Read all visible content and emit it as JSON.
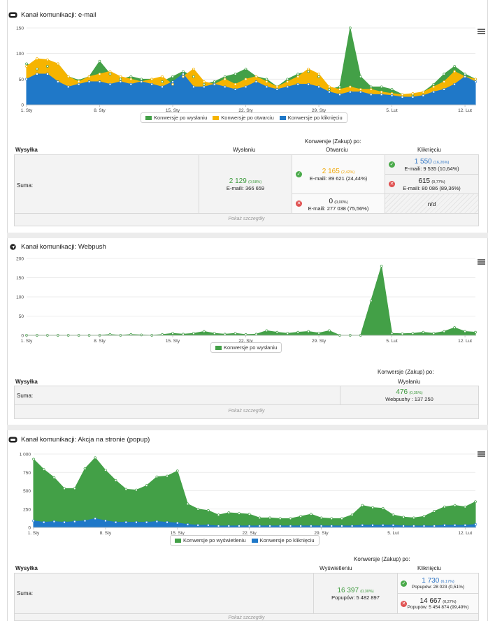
{
  "sections": [
    {
      "title": "Kanał komunikacji: e-mail",
      "icon": "email-icon",
      "chart_data": {
        "type": "area",
        "x": [
          "1. Sty",
          "2. Sty",
          "3. Sty",
          "4. Sty",
          "5. Sty",
          "6. Sty",
          "7. Sty",
          "8. Sty",
          "9. Sty",
          "10. Sty",
          "11. Sty",
          "12. Sty",
          "13. Sty",
          "14. Sty",
          "15. Sty",
          "16. Sty",
          "17. Sty",
          "18. Sty",
          "19. Sty",
          "20. Sty",
          "21. Sty",
          "22. Sty",
          "23. Sty",
          "24. Sty",
          "25. Sty",
          "26. Sty",
          "27. Sty",
          "28. Sty",
          "29. Sty",
          "30. Sty",
          "31. Sty",
          "1. Lut",
          "2. Lut",
          "3. Lut",
          "4. Lut",
          "5. Lut",
          "6. Lut",
          "7. Lut",
          "8. Lut",
          "9. Lut",
          "10. Lut",
          "11. Lut",
          "12. Lut",
          "13. Lut"
        ],
        "tick_labels": [
          "1. Sty",
          "8. Sty",
          "15. Sty",
          "22. Sty",
          "29. Sty",
          "5. Lut",
          "12. Lut"
        ],
        "tick_index": [
          0,
          7,
          14,
          21,
          28,
          35,
          42
        ],
        "yticks": [
          0,
          50,
          100,
          150
        ],
        "ylim": [
          0,
          150
        ],
        "series": [
          {
            "name": "Konwersje po wysłaniu",
            "color": "#43a047",
            "values": [
              80,
              70,
              75,
              80,
              55,
              48,
              55,
              85,
              60,
              50,
              55,
              50,
              50,
              45,
              55,
              65,
              55,
              40,
              45,
              55,
              60,
              70,
              55,
              50,
              35,
              50,
              60,
              65,
              55,
              30,
              35,
              150,
              55,
              35,
              35,
              30,
              20,
              20,
              25,
              40,
              60,
              75,
              60,
              50
            ]
          },
          {
            "name": "Konwersje po otwarciu",
            "color": "#f6b400",
            "values": [
              75,
              90,
              88,
              80,
              55,
              45,
              55,
              60,
              65,
              55,
              50,
              45,
              50,
              55,
              40,
              55,
              70,
              45,
              40,
              50,
              40,
              50,
              55,
              45,
              35,
              45,
              55,
              70,
              60,
              35,
              30,
              35,
              30,
              30,
              25,
              22,
              20,
              22,
              25,
              35,
              45,
              65,
              55,
              50
            ]
          },
          {
            "name": "Konwersje po kliknięciu",
            "color": "#1f78c8",
            "values": [
              50,
              60,
              60,
              45,
              35,
              40,
              45,
              45,
              40,
              45,
              40,
              45,
              40,
              35,
              45,
              60,
              35,
              35,
              40,
              35,
              30,
              35,
              45,
              35,
              30,
              35,
              40,
              40,
              35,
              25,
              20,
              25,
              25,
              20,
              20,
              18,
              15,
              15,
              18,
              25,
              30,
              40,
              55,
              45
            ]
          }
        ]
      },
      "table": {
        "head_group": "Konwersje (Zakup) po:",
        "col_wysylka": "Wysyłka",
        "col_sent": "Wysłaniu",
        "col_open": "Otwarciu",
        "col_click": "Kliknięciu",
        "row_label": "Suma:",
        "sent_value": "2 129",
        "sent_pct": "(0,58%)",
        "sent_sub": "E-maili: 366 659",
        "open_ok_value": "2 165",
        "open_ok_pct": "(2,42%)",
        "open_ok_sub": "E-maili: 89 621 (24,44%)",
        "open_err_value": "0",
        "open_err_pct": "(0,00%)",
        "open_err_sub": "E-maili: 277 038 (75,56%)",
        "click_ok_value": "1 550",
        "click_ok_pct": "(16,26%)",
        "click_ok_sub": "E-maili: 9 535 (10,64%)",
        "click_err_value": "615",
        "click_err_pct": "(0,77%)",
        "click_err_sub": "E-maili: 80 086 (89,36%)",
        "click_na": "n/d",
        "details": "Pokaż szczegóły"
      }
    },
    {
      "title": "Kanał komunikacji: Webpush",
      "icon": "send-icon",
      "chart_data": {
        "type": "area",
        "tick_labels": [
          "1. Sty",
          "8. Sty",
          "15. Sty",
          "22. Sty",
          "29. Sty",
          "5. Lut",
          "12. Lut"
        ],
        "tick_index": [
          0,
          7,
          14,
          21,
          28,
          35,
          42
        ],
        "yticks": [
          0,
          50,
          100,
          150,
          200
        ],
        "ylim": [
          0,
          200
        ],
        "series": [
          {
            "name": "Konwersje po wysłaniu",
            "color": "#43a047",
            "values": [
              0,
              0,
              0,
              0,
              0,
              0,
              0,
              0,
              2,
              0,
              2,
              1,
              0,
              2,
              5,
              3,
              5,
              10,
              5,
              3,
              5,
              2,
              3,
              12,
              8,
              5,
              8,
              10,
              6,
              12,
              0,
              0,
              0,
              90,
              180,
              5,
              4,
              5,
              8,
              5,
              10,
              20,
              10,
              8
            ]
          }
        ]
      },
      "table": {
        "head_group": "Konwersje (Zakup) po:",
        "col_wysylka": "Wysyłka",
        "col_sent": "Wysłaniu",
        "row_label": "Suma:",
        "sent_value": "476",
        "sent_pct": "(0,35%)",
        "sent_sub": "Webpushy : 137 250",
        "details": "Pokaż szczegóły"
      }
    },
    {
      "title": "Kanał komunikacji: Akcja na stronie (popup)",
      "icon": "popup-icon",
      "chart_data": {
        "type": "area",
        "tick_labels": [
          "1. Sty",
          "8. Sty",
          "15. Sty",
          "22. Sty",
          "29. Sty",
          "5. Lut",
          "12. Lut"
        ],
        "tick_index": [
          0,
          7,
          14,
          21,
          28,
          35,
          42
        ],
        "yticks": [
          "0",
          "250",
          "500",
          "750",
          "1 000"
        ],
        "yvals": [
          0,
          250,
          500,
          750,
          1000
        ],
        "ylim": [
          0,
          1000
        ],
        "series": [
          {
            "name": "Konwersje po wyświetleniu",
            "color": "#43a047",
            "values": [
              930,
              790,
              680,
              530,
              530,
              800,
              950,
              780,
              640,
              520,
              510,
              570,
              690,
              700,
              770,
              320,
              250,
              230,
              170,
              200,
              190,
              180,
              130,
              130,
              120,
              120,
              150,
              180,
              130,
              120,
              120,
              170,
              300,
              270,
              260,
              170,
              140,
              130,
              150,
              220,
              280,
              300,
              280,
              350
            ]
          },
          {
            "name": "Konwersje po kliknięciu",
            "color": "#1f78c8",
            "values": [
              90,
              70,
              80,
              70,
              80,
              90,
              120,
              90,
              70,
              70,
              70,
              70,
              80,
              70,
              60,
              40,
              30,
              30,
              20,
              20,
              20,
              20,
              20,
              20,
              20,
              20,
              20,
              20,
              20,
              20,
              20,
              20,
              30,
              30,
              30,
              30,
              20,
              20,
              20,
              20,
              30,
              30,
              30,
              40
            ]
          }
        ]
      },
      "table": {
        "head_group": "Konwersje (Zakup) po:",
        "col_wysylka": "Wysyłka",
        "col_view": "Wyświetleniu",
        "col_click": "Kliknięciu",
        "row_label": "Suma:",
        "view_value": "16 397",
        "view_pct": "(0,30%)",
        "view_sub": "Popupów: 5 482 897",
        "click_ok_value": "1 730",
        "click_ok_pct": "(6,17%)",
        "click_ok_sub": "Popupów: 28 023 (0,51%)",
        "click_err_value": "14 667",
        "click_err_pct": "(0,27%)",
        "click_err_sub": "Popupów: 5 454 874 (99,49%)",
        "details": "Pokaż szczegóły"
      }
    }
  ]
}
